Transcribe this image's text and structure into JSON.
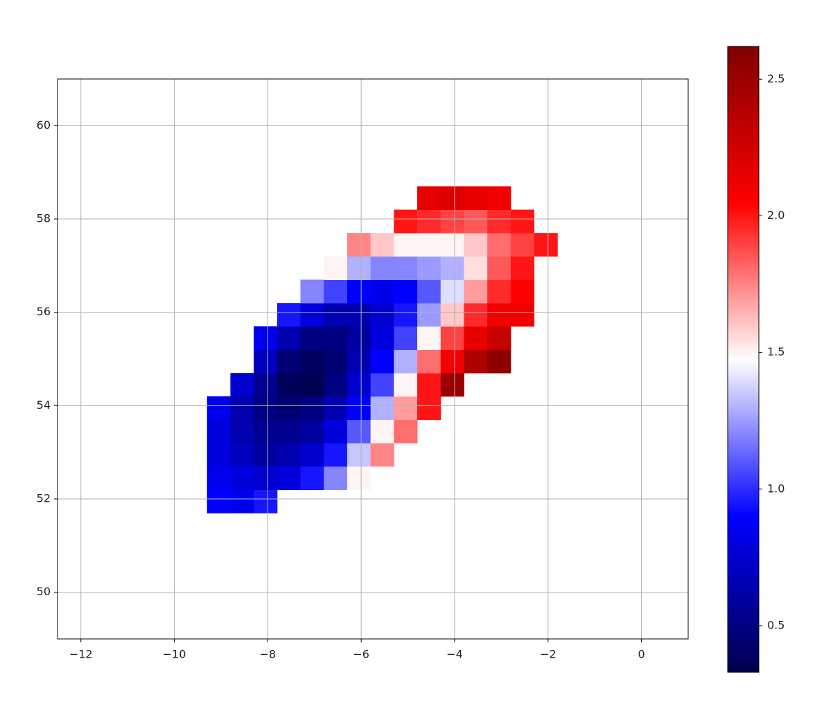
{
  "chart_data": {
    "type": "heatmap",
    "colormap": "seismic",
    "grid": true,
    "xlim": [
      -12.5,
      1.0
    ],
    "ylim": [
      49,
      61
    ],
    "xticks": [
      {
        "value": -12,
        "label": "−12"
      },
      {
        "value": -10,
        "label": "−10"
      },
      {
        "value": -8,
        "label": "−8"
      },
      {
        "value": -6,
        "label": "−6"
      },
      {
        "value": -4,
        "label": "−4"
      },
      {
        "value": -2,
        "label": "−2"
      },
      0
    ],
    "yticks": [
      50,
      52,
      54,
      56,
      58,
      60
    ],
    "clim": [
      0.33,
      2.62
    ],
    "cticks": [
      0.5,
      {
        "value": 1,
        "label": "1.0"
      },
      1.5,
      {
        "value": 2,
        "label": "2.0"
      },
      2.5
    ],
    "x_edges": [
      -9.3,
      -8.8,
      -8.3,
      -7.8,
      -7.3,
      -6.8,
      -6.3,
      -5.8,
      -5.3,
      -4.8,
      -4.3,
      -3.8,
      -3.3,
      -2.8,
      -2.3,
      -1.8
    ],
    "y_edges": [
      51.7,
      52.2,
      52.7,
      53.2,
      53.7,
      54.2,
      54.7,
      55.2,
      55.7,
      56.2,
      56.7,
      57.2,
      57.7,
      58.2,
      58.7
    ],
    "values": [
      [
        0.9,
        0.85,
        0.95,
        null,
        null,
        null,
        null,
        null,
        null,
        null,
        null,
        null,
        null,
        null,
        null
      ],
      [
        0.85,
        0.8,
        0.75,
        0.8,
        0.95,
        1.2,
        1.5,
        null,
        null,
        null,
        null,
        null,
        null,
        null,
        null
      ],
      [
        0.8,
        0.7,
        0.6,
        0.65,
        0.75,
        0.95,
        1.35,
        1.75,
        null,
        null,
        null,
        null,
        null,
        null,
        null
      ],
      [
        0.8,
        0.65,
        0.55,
        0.55,
        0.6,
        0.8,
        1.1,
        1.5,
        1.8,
        null,
        null,
        null,
        null,
        null,
        null
      ],
      [
        0.85,
        0.65,
        0.5,
        0.45,
        0.5,
        0.65,
        0.9,
        1.3,
        1.7,
        2.0,
        null,
        null,
        null,
        null,
        null
      ],
      [
        null,
        0.75,
        0.55,
        0.38,
        0.35,
        0.5,
        0.75,
        1.05,
        1.5,
        2.0,
        2.5,
        null,
        null,
        null,
        null
      ],
      [
        null,
        null,
        0.7,
        0.45,
        0.4,
        0.45,
        0.65,
        0.9,
        1.3,
        1.8,
        2.1,
        2.4,
        2.55,
        null,
        null
      ],
      [
        null,
        null,
        0.85,
        0.65,
        0.5,
        0.5,
        0.6,
        0.8,
        1.05,
        1.5,
        1.9,
        2.15,
        2.3,
        null,
        null
      ],
      [
        null,
        null,
        null,
        0.95,
        0.8,
        0.65,
        0.65,
        0.75,
        0.95,
        1.25,
        1.6,
        1.95,
        2.1,
        2.1,
        null
      ],
      [
        null,
        null,
        null,
        null,
        1.2,
        1.05,
        0.9,
        0.85,
        0.9,
        1.1,
        1.4,
        1.7,
        1.95,
        2.05,
        null
      ],
      [
        null,
        null,
        null,
        null,
        null,
        1.5,
        1.3,
        1.2,
        1.2,
        1.25,
        1.3,
        1.55,
        1.85,
        2.0,
        null
      ],
      [
        null,
        null,
        null,
        null,
        null,
        null,
        1.75,
        1.6,
        1.5,
        1.5,
        1.5,
        1.6,
        1.8,
        1.9,
        2.0
      ],
      [
        null,
        null,
        null,
        null,
        null,
        null,
        null,
        null,
        2.0,
        1.95,
        1.9,
        1.85,
        1.95,
        2.0,
        null
      ],
      [
        null,
        null,
        null,
        null,
        null,
        null,
        null,
        null,
        null,
        2.15,
        2.2,
        2.15,
        2.1,
        null,
        null
      ]
    ]
  }
}
